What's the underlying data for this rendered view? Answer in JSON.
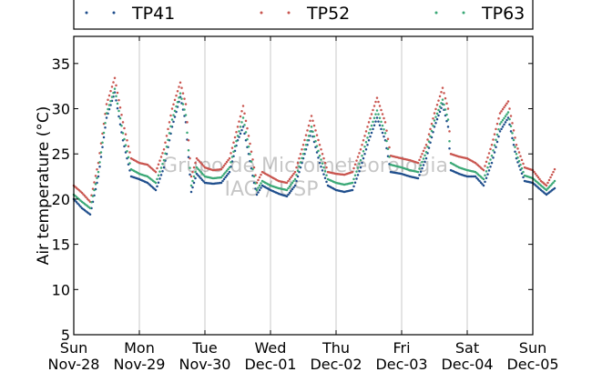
{
  "chart_data": {
    "type": "scatter",
    "title": "",
    "xlabel": "",
    "ylabel": "Air temperature (°C)",
    "ylim": [
      5,
      38
    ],
    "yticks": [
      5,
      10,
      15,
      20,
      25,
      30,
      35
    ],
    "xlim": [
      "2010-11-28",
      "2010-12-05"
    ],
    "x_ticks": [
      {
        "day": "Sun",
        "date": "Nov-28"
      },
      {
        "day": "Mon",
        "date": "Nov-29"
      },
      {
        "day": "Tue",
        "date": "Nov-30"
      },
      {
        "day": "Wed",
        "date": "Dec-01"
      },
      {
        "day": "Thu",
        "date": "Dec-02"
      },
      {
        "day": "Fri",
        "date": "Dec-03"
      },
      {
        "day": "Sat",
        "date": "Dec-04"
      },
      {
        "day": "Sun",
        "date": "Dec-05"
      }
    ],
    "grid": "vertical",
    "legend_position": "top",
    "watermark": [
      "Grupo de Micrometeorologia",
      "IAG / USP"
    ],
    "series": [
      {
        "name": "TP41",
        "color": "#1f4e8c",
        "points": [
          [
            "2010-11-28 00:00",
            20.0
          ],
          [
            "2010-11-28 03:00",
            19.0
          ],
          [
            "2010-11-28 06:00",
            18.3
          ],
          [
            "2010-11-28 09:00",
            22.5
          ],
          [
            "2010-11-28 12:00",
            29.0
          ],
          [
            "2010-11-28 15:00",
            31.8
          ],
          [
            "2010-11-28 18:00",
            26.5
          ],
          [
            "2010-11-28 21:00",
            22.5
          ],
          [
            "2010-11-29 00:00",
            22.2
          ],
          [
            "2010-11-29 03:00",
            21.8
          ],
          [
            "2010-11-29 06:00",
            21.0
          ],
          [
            "2010-11-29 09:00",
            23.5
          ],
          [
            "2010-11-29 12:00",
            28.0
          ],
          [
            "2010-11-29 15:00",
            31.3
          ],
          [
            "2010-11-29 17:00",
            28.5
          ],
          [
            "2010-11-29 19:00",
            20.8
          ],
          [
            "2010-11-29 21:00",
            22.8
          ],
          [
            "2010-11-30 00:00",
            21.8
          ],
          [
            "2010-11-30 03:00",
            21.7
          ],
          [
            "2010-11-30 06:00",
            21.8
          ],
          [
            "2010-11-30 09:00",
            23.0
          ],
          [
            "2010-11-30 12:00",
            26.5
          ],
          [
            "2010-11-30 14:00",
            28.0
          ],
          [
            "2010-11-30 16:00",
            25.0
          ],
          [
            "2010-11-30 18:00",
            21.8
          ],
          [
            "2010-11-30 19:00",
            20.5
          ],
          [
            "2010-11-30 21:00",
            21.5
          ],
          [
            "2010-12-01 00:00",
            21.0
          ],
          [
            "2010-12-01 03:00",
            20.6
          ],
          [
            "2010-12-01 06:00",
            20.3
          ],
          [
            "2010-12-01 09:00",
            21.5
          ],
          [
            "2010-12-01 12:00",
            24.5
          ],
          [
            "2010-12-01 15:00",
            27.5
          ],
          [
            "2010-12-01 18:00",
            24.0
          ],
          [
            "2010-12-01 21:00",
            21.5
          ],
          [
            "2010-12-02 00:00",
            21.0
          ],
          [
            "2010-12-02 03:00",
            20.8
          ],
          [
            "2010-12-02 06:00",
            21.0
          ],
          [
            "2010-12-02 09:00",
            23.5
          ],
          [
            "2010-12-02 12:00",
            26.5
          ],
          [
            "2010-12-02 15:00",
            29.0
          ],
          [
            "2010-12-02 18:00",
            26.5
          ],
          [
            "2010-12-02 20:00",
            23.0
          ],
          [
            "2010-12-03 00:00",
            22.8
          ],
          [
            "2010-12-03 03:00",
            22.5
          ],
          [
            "2010-12-03 06:00",
            22.3
          ],
          [
            "2010-12-03 09:00",
            24.5
          ],
          [
            "2010-12-03 12:00",
            28.0
          ],
          [
            "2010-12-03 15:00",
            30.5
          ],
          [
            "2010-12-03 17:00",
            28.0
          ],
          [
            "2010-12-03 18:00",
            23.2
          ],
          [
            "2010-12-03 21:00",
            22.8
          ],
          [
            "2010-12-04 00:00",
            22.5
          ],
          [
            "2010-12-04 03:00",
            22.5
          ],
          [
            "2010-12-04 06:00",
            21.5
          ],
          [
            "2010-12-04 09:00",
            24.0
          ],
          [
            "2010-12-04 12:00",
            27.5
          ],
          [
            "2010-12-04 15:00",
            29.0
          ],
          [
            "2010-12-04 18:00",
            24.5
          ],
          [
            "2010-12-04 21:00",
            22.0
          ],
          [
            "2010-12-05 00:00",
            21.8
          ],
          [
            "2010-12-05 03:00",
            21.0
          ],
          [
            "2010-12-05 05:00",
            20.5
          ],
          [
            "2010-12-05 08:00",
            21.2
          ]
        ]
      },
      {
        "name": "TP52",
        "color": "#c9554f",
        "points": [
          [
            "2010-11-28 00:00",
            21.5
          ],
          [
            "2010-11-28 03:00",
            20.7
          ],
          [
            "2010-11-28 06:00",
            19.7
          ],
          [
            "2010-11-28 09:00",
            24.0
          ],
          [
            "2010-11-28 12:00",
            30.5
          ],
          [
            "2010-11-28 15:00",
            33.4
          ],
          [
            "2010-11-28 18:00",
            28.5
          ],
          [
            "2010-11-28 21:00",
            24.5
          ],
          [
            "2010-11-29 00:00",
            24.0
          ],
          [
            "2010-11-29 03:00",
            23.8
          ],
          [
            "2010-11-29 06:00",
            23.0
          ],
          [
            "2010-11-29 09:00",
            25.5
          ],
          [
            "2010-11-29 12:00",
            30.0
          ],
          [
            "2010-11-29 15:00",
            32.9
          ],
          [
            "2010-11-29 17:00",
            30.5
          ],
          [
            "2010-11-29 19:00",
            22.5
          ],
          [
            "2010-11-29 21:00",
            24.5
          ],
          [
            "2010-11-30 00:00",
            23.5
          ],
          [
            "2010-11-30 03:00",
            23.2
          ],
          [
            "2010-11-30 06:00",
            23.3
          ],
          [
            "2010-11-30 09:00",
            24.5
          ],
          [
            "2010-11-30 12:00",
            28.0
          ],
          [
            "2010-11-30 14:00",
            30.3
          ],
          [
            "2010-11-30 16:00",
            27.0
          ],
          [
            "2010-11-30 18:00",
            23.5
          ],
          [
            "2010-11-30 19:00",
            21.8
          ],
          [
            "2010-11-30 21:00",
            23.0
          ],
          [
            "2010-12-01 00:00",
            22.5
          ],
          [
            "2010-12-01 03:00",
            22.0
          ],
          [
            "2010-12-01 06:00",
            21.8
          ],
          [
            "2010-12-01 09:00",
            23.0
          ],
          [
            "2010-12-01 12:00",
            26.0
          ],
          [
            "2010-12-01 15:00",
            29.2
          ],
          [
            "2010-12-01 18:00",
            26.0
          ],
          [
            "2010-12-01 21:00",
            23.0
          ],
          [
            "2010-12-02 00:00",
            22.8
          ],
          [
            "2010-12-02 03:00",
            22.7
          ],
          [
            "2010-12-02 06:00",
            23.0
          ],
          [
            "2010-12-02 09:00",
            25.5
          ],
          [
            "2010-12-02 12:00",
            28.5
          ],
          [
            "2010-12-02 15:00",
            31.2
          ],
          [
            "2010-12-02 18:00",
            28.5
          ],
          [
            "2010-12-02 20:00",
            24.8
          ],
          [
            "2010-12-03 00:00",
            24.5
          ],
          [
            "2010-12-03 03:00",
            24.3
          ],
          [
            "2010-12-03 06:00",
            24.0
          ],
          [
            "2010-12-03 09:00",
            26.0
          ],
          [
            "2010-12-03 12:00",
            29.5
          ],
          [
            "2010-12-03 15:00",
            32.3
          ],
          [
            "2010-12-03 17:00",
            30.0
          ],
          [
            "2010-12-03 18:00",
            25.0
          ],
          [
            "2010-12-03 21:00",
            24.7
          ],
          [
            "2010-12-04 00:00",
            24.5
          ],
          [
            "2010-12-04 03:00",
            24.0
          ],
          [
            "2010-12-04 06:00",
            23.2
          ],
          [
            "2010-12-04 09:00",
            26.0
          ],
          [
            "2010-12-04 12:00",
            29.5
          ],
          [
            "2010-12-04 15:00",
            30.8
          ],
          [
            "2010-12-04 18:00",
            26.0
          ],
          [
            "2010-12-04 21:00",
            23.5
          ],
          [
            "2010-12-05 00:00",
            23.2
          ],
          [
            "2010-12-05 03:00",
            22.0
          ],
          [
            "2010-12-05 05:00",
            21.5
          ],
          [
            "2010-12-05 08:00",
            23.3
          ]
        ]
      },
      {
        "name": "TP63",
        "color": "#3aa876",
        "points": [
          [
            "2010-11-28 00:00",
            20.5
          ],
          [
            "2010-11-28 03:00",
            19.7
          ],
          [
            "2010-11-28 06:00",
            19.0
          ],
          [
            "2010-11-28 09:00",
            23.0
          ],
          [
            "2010-11-28 12:00",
            29.5
          ],
          [
            "2010-11-28 15:00",
            32.2
          ],
          [
            "2010-11-28 18:00",
            27.3
          ],
          [
            "2010-11-28 21:00",
            23.3
          ],
          [
            "2010-11-29 00:00",
            22.8
          ],
          [
            "2010-11-29 03:00",
            22.5
          ],
          [
            "2010-11-29 06:00",
            21.8
          ],
          [
            "2010-11-29 09:00",
            24.3
          ],
          [
            "2010-11-29 12:00",
            28.8
          ],
          [
            "2010-11-29 15:00",
            31.7
          ],
          [
            "2010-11-29 17:00",
            29.3
          ],
          [
            "2010-11-29 19:00",
            21.5
          ],
          [
            "2010-11-29 21:00",
            23.5
          ],
          [
            "2010-11-30 00:00",
            22.5
          ],
          [
            "2010-11-30 03:00",
            22.3
          ],
          [
            "2010-11-30 06:00",
            22.4
          ],
          [
            "2010-11-30 09:00",
            23.5
          ],
          [
            "2010-11-30 12:00",
            27.0
          ],
          [
            "2010-11-30 14:00",
            29.0
          ],
          [
            "2010-11-30 16:00",
            25.8
          ],
          [
            "2010-11-30 18:00",
            22.5
          ],
          [
            "2010-11-30 19:00",
            21.0
          ],
          [
            "2010-11-30 21:00",
            22.0
          ],
          [
            "2010-12-01 00:00",
            21.5
          ],
          [
            "2010-12-01 03:00",
            21.2
          ],
          [
            "2010-12-01 06:00",
            21.0
          ],
          [
            "2010-12-01 09:00",
            22.2
          ],
          [
            "2010-12-01 12:00",
            25.0
          ],
          [
            "2010-12-01 15:00",
            28.0
          ],
          [
            "2010-12-01 18:00",
            24.8
          ],
          [
            "2010-12-01 21:00",
            22.2
          ],
          [
            "2010-12-02 00:00",
            21.8
          ],
          [
            "2010-12-02 03:00",
            21.6
          ],
          [
            "2010-12-02 06:00",
            21.8
          ],
          [
            "2010-12-02 09:00",
            24.3
          ],
          [
            "2010-12-02 12:00",
            27.3
          ],
          [
            "2010-12-02 15:00",
            29.8
          ],
          [
            "2010-12-02 18:00",
            27.3
          ],
          [
            "2010-12-02 20:00",
            23.8
          ],
          [
            "2010-12-03 00:00",
            23.5
          ],
          [
            "2010-12-03 03:00",
            23.2
          ],
          [
            "2010-12-03 06:00",
            23.0
          ],
          [
            "2010-12-03 09:00",
            25.2
          ],
          [
            "2010-12-03 12:00",
            28.7
          ],
          [
            "2010-12-03 15:00",
            31.0
          ],
          [
            "2010-12-03 17:00",
            28.8
          ],
          [
            "2010-12-03 18:00",
            24.0
          ],
          [
            "2010-12-03 21:00",
            23.5
          ],
          [
            "2010-12-04 00:00",
            23.2
          ],
          [
            "2010-12-04 03:00",
            23.0
          ],
          [
            "2010-12-04 06:00",
            22.2
          ],
          [
            "2010-12-04 09:00",
            24.8
          ],
          [
            "2010-12-04 12:00",
            28.3
          ],
          [
            "2010-12-04 15:00",
            29.6
          ],
          [
            "2010-12-04 18:00",
            25.0
          ],
          [
            "2010-12-04 21:00",
            22.6
          ],
          [
            "2010-12-05 00:00",
            22.3
          ],
          [
            "2010-12-05 03:00",
            21.5
          ],
          [
            "2010-12-05 05:00",
            21.0
          ],
          [
            "2010-12-05 08:00",
            22.0
          ]
        ]
      }
    ]
  }
}
